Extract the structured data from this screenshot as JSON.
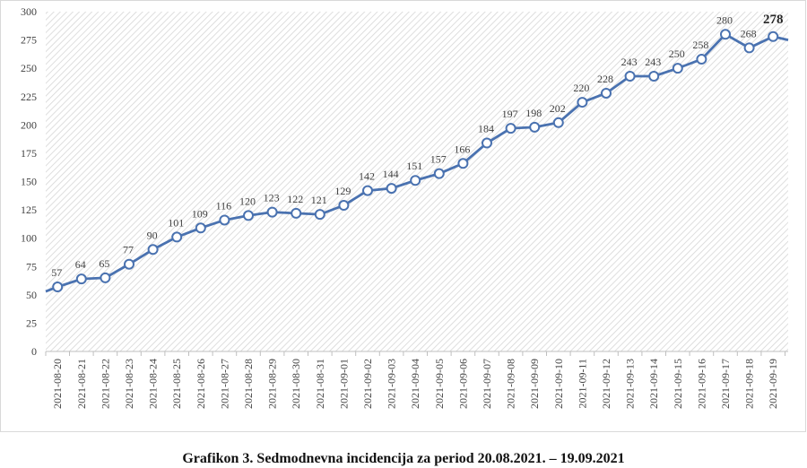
{
  "chart_data": {
    "type": "line",
    "title": "",
    "xlabel": "",
    "ylabel": "",
    "ylim": [
      0,
      300
    ],
    "yticks": [
      0,
      25,
      50,
      75,
      100,
      125,
      150,
      175,
      200,
      225,
      250,
      275,
      300
    ],
    "grid": "hatched background",
    "legend": "none",
    "categories": [
      "2021-08-20",
      "2021-08-21",
      "2021-08-22",
      "2021-08-23",
      "2021-08-24",
      "2021-08-25",
      "2021-08-26",
      "2021-08-27",
      "2021-08-28",
      "2021-08-29",
      "2021-08-30",
      "2021-08-31",
      "2021-09-01",
      "2021-09-02",
      "2021-09-03",
      "2021-09-04",
      "2021-09-05",
      "2021-09-06",
      "2021-09-07",
      "2021-09-08",
      "2021-09-09",
      "2021-09-10",
      "2021-09-11",
      "2021-09-12",
      "2021-09-13",
      "2021-09-14",
      "2021-09-15",
      "2021-09-16",
      "2021-09-17",
      "2021-09-18",
      "2021-09-19"
    ],
    "series": [
      {
        "name": "Sedmodnevna incidencija",
        "values": [
          57,
          64,
          65,
          77,
          90,
          101,
          109,
          116,
          120,
          123,
          122,
          121,
          129,
          142,
          144,
          151,
          157,
          166,
          184,
          197,
          198,
          202,
          220,
          228,
          243,
          243,
          250,
          258,
          280,
          268,
          278
        ],
        "line_start_value": 53,
        "line_end_value": 275
      }
    ],
    "highlight_last_label": true,
    "colors": {
      "line": "#4a72b0",
      "marker_fill": "#ffffff",
      "hatch": "#d6d6d6",
      "axis": "#bfbfbf"
    }
  },
  "caption": "Grafikon 3. Sedmodnevna incidencija za period 20.08.2021. – 19.09.2021"
}
